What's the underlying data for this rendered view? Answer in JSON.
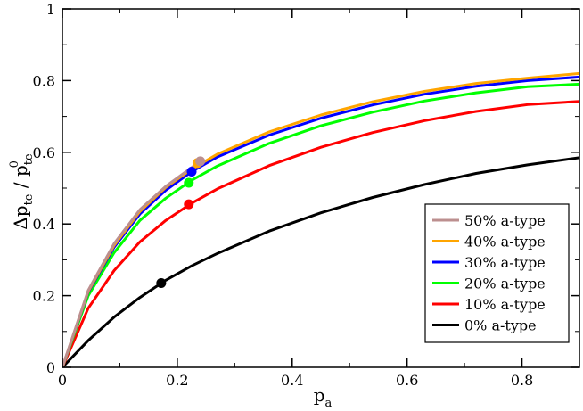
{
  "chart_data": {
    "type": "line",
    "xlabel": {
      "main": "p",
      "sub": "a"
    },
    "ylabel": {
      "delta": "Δ",
      "num": "p",
      "num_sub": "te",
      "slash": " / ",
      "den": "p",
      "den_sub": "te",
      "den_sup": "0"
    },
    "xlim": [
      0,
      0.9
    ],
    "ylim": [
      0,
      1
    ],
    "xticks": [
      0,
      0.2,
      0.4,
      0.6,
      0.8
    ],
    "yticks": [
      0,
      0.2,
      0.4,
      0.6,
      0.8,
      1
    ],
    "xtick_labels": [
      "0",
      "0.2",
      "0.4",
      "0.6",
      "0.8"
    ],
    "ytick_labels": [
      "0",
      "0.2",
      "0.4",
      "0.6",
      "0.8",
      "1"
    ],
    "grid": false,
    "legend_position": "bottom-right",
    "series": [
      {
        "name": "50% a-type",
        "color": "#bc8f8f",
        "x": [
          0,
          0.045,
          0.09,
          0.135,
          0.18,
          0.24
        ],
        "y": [
          0,
          0.215,
          0.345,
          0.44,
          0.505,
          0.575
        ],
        "marker": [
          0.24,
          0.575
        ]
      },
      {
        "name": "40% a-type",
        "color": "#ffa500",
        "x": [
          0,
          0.045,
          0.09,
          0.135,
          0.18,
          0.225,
          0.27,
          0.36,
          0.45,
          0.54,
          0.63,
          0.72,
          0.81,
          0.9
        ],
        "y": [
          0,
          0.212,
          0.34,
          0.435,
          0.502,
          0.553,
          0.595,
          0.657,
          0.704,
          0.741,
          0.77,
          0.792,
          0.807,
          0.82
        ],
        "marker": [
          0.235,
          0.57
        ]
      },
      {
        "name": "30% a-type",
        "color": "#0000ff",
        "x": [
          0,
          0.045,
          0.09,
          0.135,
          0.18,
          0.225,
          0.27,
          0.36,
          0.45,
          0.54,
          0.63,
          0.72,
          0.81,
          0.9
        ],
        "y": [
          0,
          0.21,
          0.335,
          0.428,
          0.494,
          0.546,
          0.587,
          0.648,
          0.695,
          0.732,
          0.762,
          0.784,
          0.8,
          0.81
        ],
        "marker": [
          0.225,
          0.546
        ]
      },
      {
        "name": "20% a-type",
        "color": "#00ff00",
        "x": [
          0,
          0.045,
          0.09,
          0.135,
          0.18,
          0.225,
          0.27,
          0.36,
          0.45,
          0.54,
          0.63,
          0.72,
          0.81,
          0.9
        ],
        "y": [
          0,
          0.2,
          0.32,
          0.41,
          0.472,
          0.522,
          0.562,
          0.625,
          0.674,
          0.712,
          0.743,
          0.766,
          0.783,
          0.79
        ],
        "marker": [
          0.22,
          0.515
        ]
      },
      {
        "name": "10% a-type",
        "color": "#ff0000",
        "x": [
          0,
          0.045,
          0.09,
          0.135,
          0.18,
          0.225,
          0.27,
          0.36,
          0.45,
          0.54,
          0.63,
          0.72,
          0.81,
          0.9
        ],
        "y": [
          0,
          0.165,
          0.27,
          0.35,
          0.41,
          0.458,
          0.498,
          0.563,
          0.614,
          0.655,
          0.688,
          0.714,
          0.733,
          0.742
        ],
        "marker": [
          0.22,
          0.455
        ]
      },
      {
        "name": "0% a-type",
        "color": "#000000",
        "x": [
          0,
          0.045,
          0.09,
          0.135,
          0.18,
          0.225,
          0.27,
          0.36,
          0.45,
          0.54,
          0.63,
          0.72,
          0.81,
          0.9
        ],
        "y": [
          0,
          0.075,
          0.14,
          0.195,
          0.243,
          0.283,
          0.318,
          0.38,
          0.431,
          0.474,
          0.51,
          0.541,
          0.565,
          0.585
        ],
        "marker": [
          0.172,
          0.235
        ]
      }
    ]
  }
}
